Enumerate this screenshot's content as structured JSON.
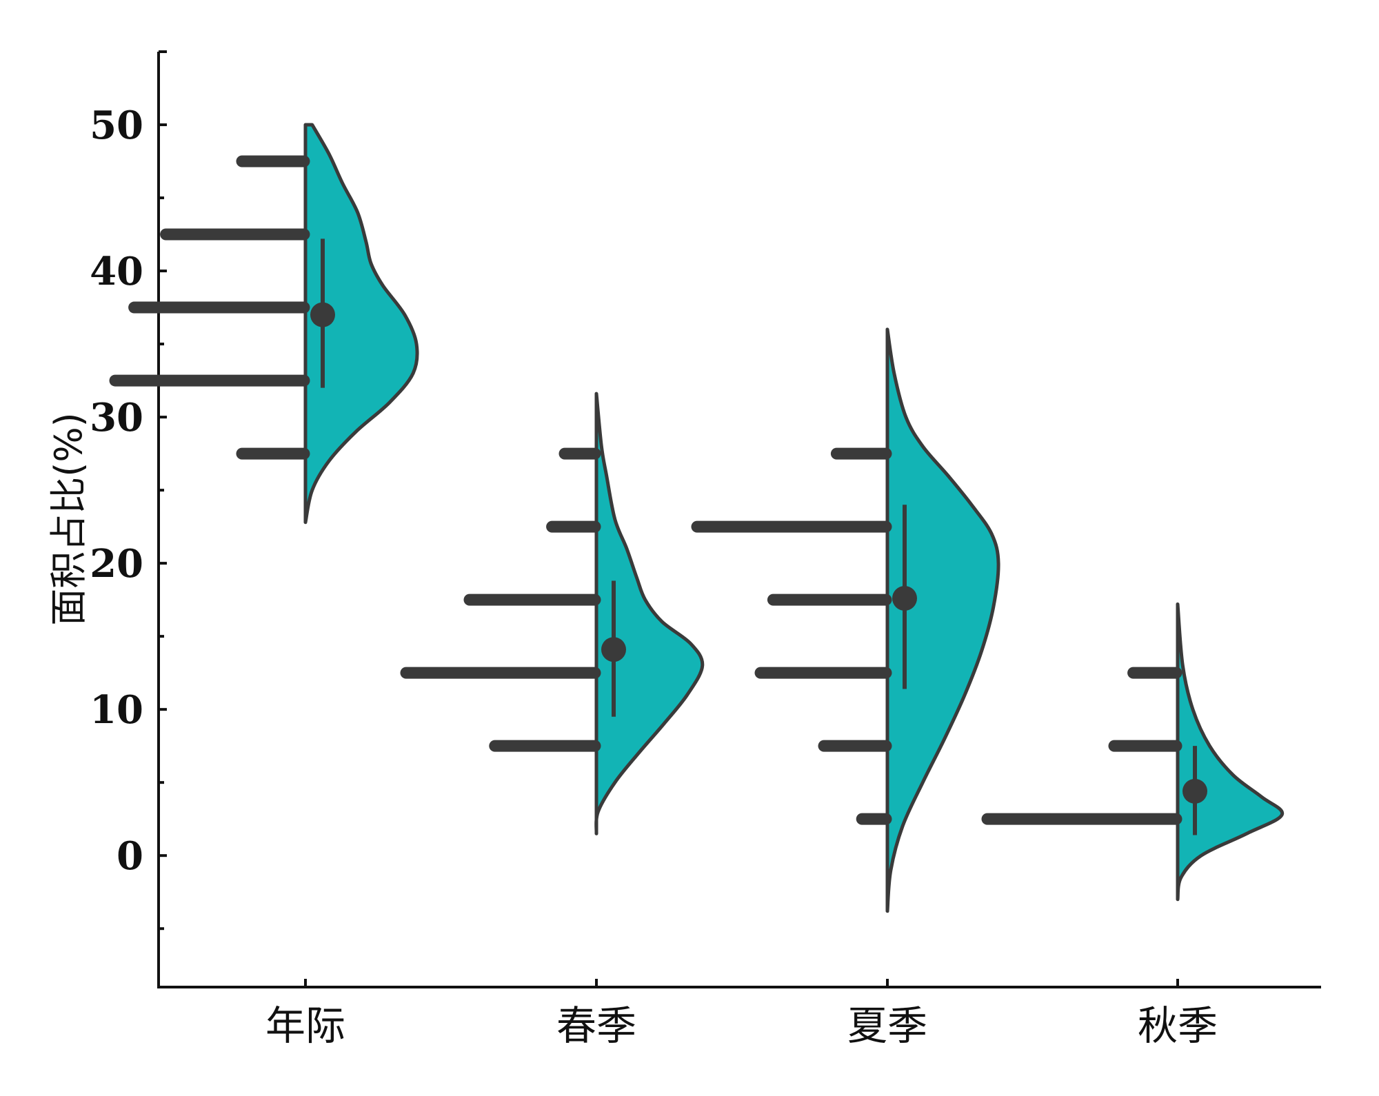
{
  "chart_data": {
    "type": "half-violin",
    "title": "",
    "xlabel": "",
    "ylabel": "面积占比(%)",
    "ylim": [
      -9,
      55
    ],
    "yticks": [
      0,
      10,
      20,
      30,
      40,
      50
    ],
    "yminor": [
      -5,
      5,
      15,
      25,
      35,
      45
    ],
    "grid": false,
    "legend": "none",
    "colors": {
      "violin": "#12B4B5",
      "outline": "#3a3a3a",
      "marks": "#3a3a3a"
    },
    "groups": [
      {
        "category": "年际",
        "mean": 37.0,
        "range": [
          32.0,
          42.2
        ],
        "violin_min": 22.8,
        "violin_max": 50.0,
        "density": [
          [
            22.8,
            0
          ],
          [
            25,
            8
          ],
          [
            27,
            28
          ],
          [
            29,
            60
          ],
          [
            31,
            100
          ],
          [
            33,
            128
          ],
          [
            35,
            132
          ],
          [
            37,
            118
          ],
          [
            39,
            92
          ],
          [
            40.5,
            78
          ],
          [
            42,
            72
          ],
          [
            44,
            62
          ],
          [
            46,
            44
          ],
          [
            48,
            28
          ],
          [
            50,
            8
          ]
        ],
        "histogram": [
          {
            "bin": 27.5,
            "count": 1
          },
          {
            "bin": 32.5,
            "count": 3
          },
          {
            "bin": 37.5,
            "count": 2.7
          },
          {
            "bin": 42.5,
            "count": 2.2
          },
          {
            "bin": 47.5,
            "count": 1
          }
        ]
      },
      {
        "category": "春季",
        "mean": 14.1,
        "range": [
          9.5,
          18.8
        ],
        "violin_min": 1.5,
        "violin_max": 31.6,
        "density": [
          [
            1.5,
            0
          ],
          [
            3,
            2
          ],
          [
            5,
            22
          ],
          [
            7,
            50
          ],
          [
            9,
            80
          ],
          [
            11,
            108
          ],
          [
            13,
            126
          ],
          [
            14.5,
            112
          ],
          [
            16,
            78
          ],
          [
            17.5,
            58
          ],
          [
            19,
            48
          ],
          [
            21,
            36
          ],
          [
            23,
            22
          ],
          [
            26,
            12
          ],
          [
            28,
            6
          ],
          [
            31.6,
            0
          ]
        ],
        "histogram": [
          {
            "bin": 7.5,
            "count": 1.6
          },
          {
            "bin": 12.5,
            "count": 3
          },
          {
            "bin": 17.5,
            "count": 2
          },
          {
            "bin": 22.5,
            "count": 0.7
          },
          {
            "bin": 27.5,
            "count": 0.5
          }
        ]
      },
      {
        "category": "夏季",
        "mean": 17.6,
        "range": [
          11.4,
          24.0
        ],
        "violin_min": -3.8,
        "violin_max": 36.0,
        "density": [
          [
            -3.8,
            0
          ],
          [
            -1,
            4
          ],
          [
            2,
            18
          ],
          [
            5,
            42
          ],
          [
            8,
            68
          ],
          [
            11,
            92
          ],
          [
            14,
            112
          ],
          [
            17,
            126
          ],
          [
            20,
            132
          ],
          [
            22,
            124
          ],
          [
            24,
            100
          ],
          [
            26,
            72
          ],
          [
            28,
            42
          ],
          [
            30,
            22
          ],
          [
            33,
            8
          ],
          [
            36,
            0
          ]
        ],
        "histogram": [
          {
            "bin": 2.5,
            "count": 0.4
          },
          {
            "bin": 7.5,
            "count": 1
          },
          {
            "bin": 12.5,
            "count": 2
          },
          {
            "bin": 17.5,
            "count": 1.8
          },
          {
            "bin": 22.5,
            "count": 3
          },
          {
            "bin": 27.5,
            "count": 0.8
          }
        ]
      },
      {
        "category": "秋季",
        "mean": 4.4,
        "range": [
          1.4,
          7.5
        ],
        "violin_min": -3.0,
        "violin_max": 17.2,
        "density": [
          [
            -3,
            0
          ],
          [
            -1.5,
            4
          ],
          [
            0,
            28
          ],
          [
            1.5,
            82
          ],
          [
            2.8,
            124
          ],
          [
            4,
            100
          ],
          [
            5.5,
            66
          ],
          [
            7.5,
            38
          ],
          [
            10,
            18
          ],
          [
            13,
            6
          ],
          [
            17.2,
            0
          ]
        ],
        "histogram": [
          {
            "bin": 2.5,
            "count": 3
          },
          {
            "bin": 7.5,
            "count": 1
          },
          {
            "bin": 12.5,
            "count": 0.7
          }
        ]
      }
    ]
  }
}
